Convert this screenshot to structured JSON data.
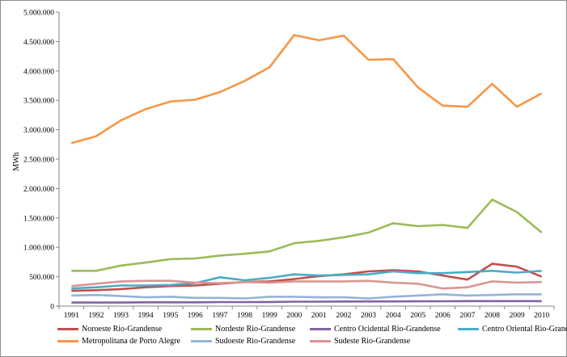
{
  "chart_data": {
    "type": "line",
    "title": "",
    "xlabel": "",
    "ylabel": "MWh",
    "ylim": [
      0,
      5000000
    ],
    "yticks": [
      0,
      500000,
      1000000,
      1500000,
      2000000,
      2500000,
      3000000,
      3500000,
      4000000,
      4500000,
      5000000
    ],
    "ytick_labels": [
      "0",
      "500.000",
      "1.000.000",
      "1.500.000",
      "2.000.000",
      "2.500.000",
      "3.000.000",
      "3.500.000",
      "4.000.000",
      "4.500.000",
      "5.000.000"
    ],
    "categories": [
      "1991",
      "1992",
      "1993",
      "1994",
      "1995",
      "1996",
      "1997",
      "1998",
      "1999",
      "2000",
      "2001",
      "2002",
      "2003",
      "2004",
      "2005",
      "2006",
      "2007",
      "2008",
      "2009",
      "2010"
    ],
    "grid": false,
    "legend_position": "bottom",
    "series": [
      {
        "name": "Noroeste Rio-Grandense",
        "color": "#C0504D",
        "values": [
          260000,
          270000,
          290000,
          320000,
          340000,
          350000,
          380000,
          410000,
          420000,
          460000,
          510000,
          540000,
          590000,
          610000,
          590000,
          520000,
          450000,
          720000,
          670000,
          500000
        ]
      },
      {
        "name": "Nordeste Rio-Grandense",
        "color": "#9BBB59",
        "values": [
          600000,
          600000,
          690000,
          740000,
          800000,
          810000,
          860000,
          890000,
          930000,
          1070000,
          1110000,
          1170000,
          1250000,
          1410000,
          1360000,
          1380000,
          1330000,
          1810000,
          1600000,
          1250000
        ]
      },
      {
        "name": "Centro Ocidental Rio-Grandense",
        "color": "#8064A2",
        "values": [
          60000,
          60000,
          60000,
          65000,
          65000,
          65000,
          68000,
          68000,
          70000,
          75000,
          75000,
          78000,
          80000,
          80000,
          82000,
          82000,
          85000,
          85000,
          85000,
          85000
        ]
      },
      {
        "name": "Centro Oriental Rio-Grandense",
        "color": "#4BACC6",
        "values": [
          300000,
          320000,
          350000,
          350000,
          360000,
          390000,
          490000,
          440000,
          480000,
          540000,
          520000,
          530000,
          540000,
          590000,
          560000,
          560000,
          580000,
          600000,
          570000,
          600000
        ]
      },
      {
        "name": "Metropolitana de Porto Alegre",
        "color": "#F79646",
        "values": [
          2770000,
          2890000,
          3160000,
          3350000,
          3480000,
          3510000,
          3640000,
          3830000,
          4060000,
          4610000,
          4520000,
          4600000,
          4190000,
          4200000,
          3720000,
          3410000,
          3390000,
          3780000,
          3390000,
          3620000
        ]
      },
      {
        "name": "Sudoeste Rio-Grandense",
        "color": "#95B3D7",
        "values": [
          180000,
          190000,
          170000,
          150000,
          160000,
          140000,
          140000,
          130000,
          160000,
          160000,
          150000,
          150000,
          130000,
          160000,
          180000,
          200000,
          180000,
          190000,
          200000,
          200000
        ]
      },
      {
        "name": "Sudeste Rio-Grandense",
        "color": "#D99694",
        "values": [
          340000,
          380000,
          420000,
          430000,
          430000,
          400000,
          390000,
          410000,
          400000,
          420000,
          420000,
          420000,
          430000,
          400000,
          380000,
          300000,
          320000,
          420000,
          400000,
          410000
        ]
      }
    ]
  }
}
